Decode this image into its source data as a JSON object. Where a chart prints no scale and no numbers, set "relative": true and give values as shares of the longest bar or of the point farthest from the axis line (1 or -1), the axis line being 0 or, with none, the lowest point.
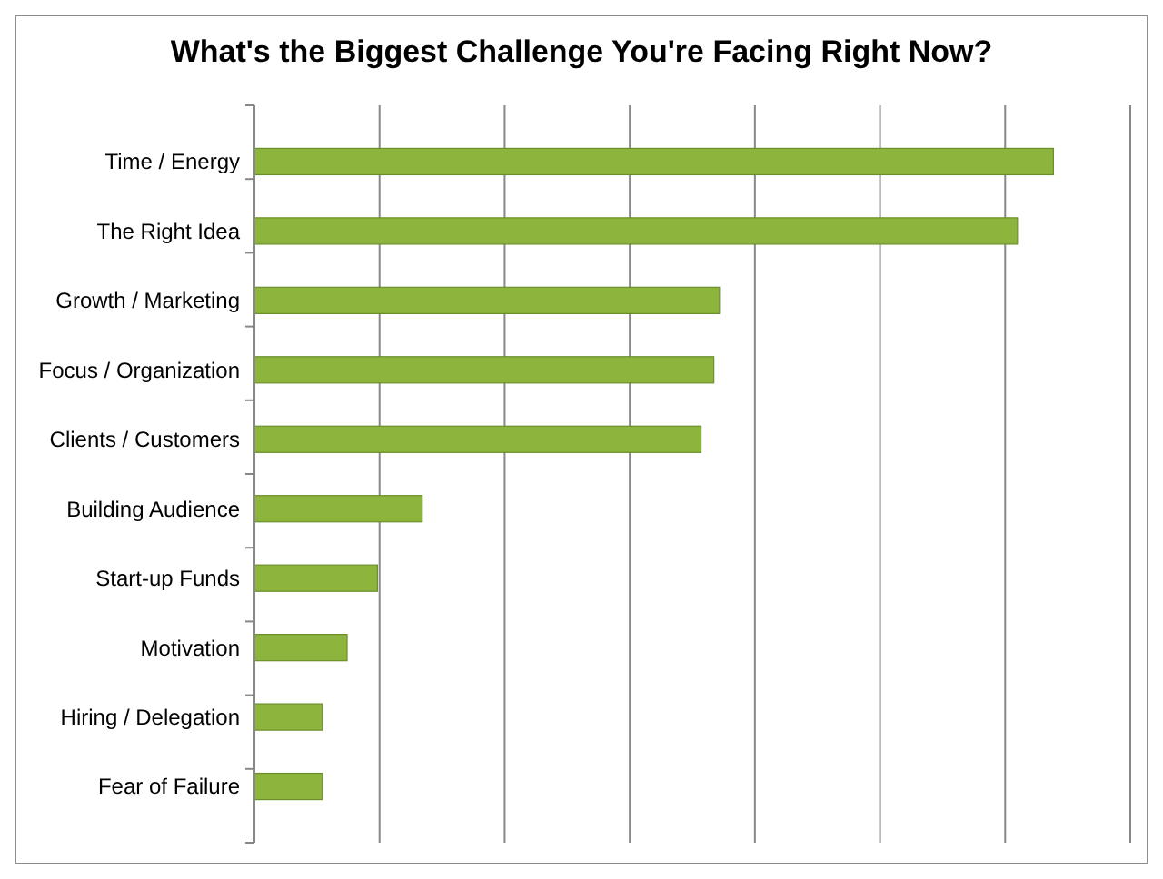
{
  "chart_data": {
    "type": "bar",
    "orientation": "horizontal",
    "relative": true,
    "title": "What's the Biggest Challenge You're Facing Right Now?",
    "categories": [
      "Time / Energy",
      "The Right Idea",
      "Growth / Marketing",
      "Focus / Organization",
      "Clients / Customers",
      "Building Audience",
      "Start-up Funds",
      "Motivation",
      "Hiring / Delegation",
      "Fear of Failure"
    ],
    "values": [
      1,
      0.955,
      0.582,
      0.575,
      0.559,
      0.21,
      0.154,
      0.116,
      0.085,
      0.085
    ],
    "color": "#8db43c",
    "grid": "x"
  }
}
